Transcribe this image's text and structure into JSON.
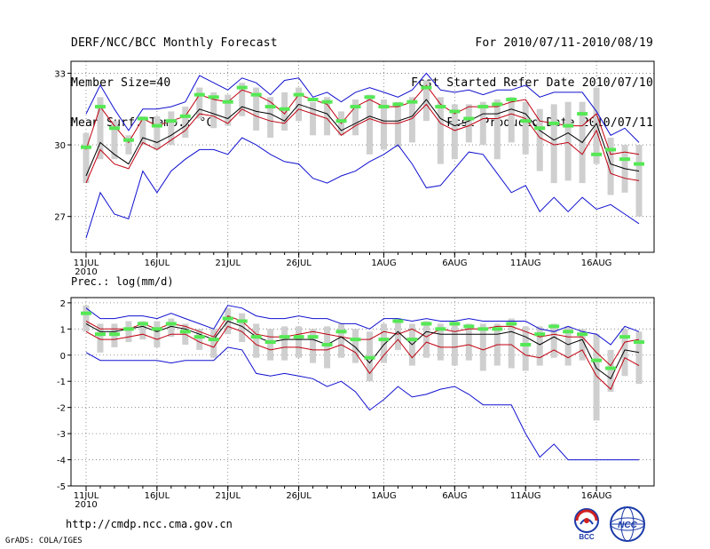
{
  "header": {
    "left": [
      "DERF/NCC/BCC Monthly Forecast",
      "Member Size=40",
      "Mean Surf. Temp.: °C"
    ],
    "right": [
      "For 2010/07/11-2010/08/19",
      "Fcst Started Refer Date 2010/07/10",
      "Fcst Produced Date 2010/07/11"
    ]
  },
  "footer": {
    "url": "http://cmdp.ncc.cma.gov.cn",
    "credit": "GrADS: COLA/IGES",
    "logo1_text": "BCC",
    "logo2_text": "NCC"
  },
  "colors": {
    "max_line": "#1010d0",
    "min_line": "#1010d0",
    "mean_line": "#000000",
    "p_line": "#c00010",
    "box": "#cfcfcf",
    "median": "#55e855",
    "grid": "#777777"
  },
  "chart_data": [
    {
      "type": "line",
      "title": "Mean Surf. Temp.: °C",
      "ylabel": "°C",
      "ylim": [
        25.5,
        33.5
      ],
      "yticks": [
        27,
        30,
        33
      ],
      "x_days": [
        1,
        2,
        3,
        4,
        5,
        6,
        7,
        8,
        9,
        10,
        11,
        12,
        13,
        14,
        15,
        16,
        17,
        18,
        19,
        20,
        21,
        22,
        23,
        24,
        25,
        26,
        27,
        28,
        29,
        30,
        31,
        32,
        33,
        34,
        35,
        36,
        37,
        38,
        39,
        40
      ],
      "xticks": [
        {
          "day": 1,
          "label": "11JUL",
          "sublabel": "2010"
        },
        {
          "day": 6,
          "label": "16JUL"
        },
        {
          "day": 11,
          "label": "21JUL"
        },
        {
          "day": 16,
          "label": "26JUL"
        },
        {
          "day": 22,
          "label": "1AUG"
        },
        {
          "day": 27,
          "label": "6AUG"
        },
        {
          "day": 32,
          "label": "11AUG"
        },
        {
          "day": 37,
          "label": "16AUG"
        }
      ],
      "series": [
        {
          "name": "max",
          "values": [
            31.3,
            32.5,
            31.5,
            30.6,
            31.5,
            31.5,
            31.6,
            31.8,
            32.9,
            32.6,
            32.3,
            32.8,
            32.6,
            32.1,
            32.7,
            32.8,
            32.0,
            32.2,
            31.8,
            32.2,
            32.4,
            32.2,
            32.0,
            32.3,
            33.0,
            32.3,
            32.2,
            32.3,
            32.1,
            32.3,
            32.3,
            32.5,
            32.0,
            32.2,
            32.2,
            32.2,
            31.4,
            30.4,
            30.7,
            30.1
          ]
        },
        {
          "name": "upper",
          "values": [
            29.8,
            31.6,
            30.8,
            30.1,
            31.1,
            30.8,
            31.0,
            31.2,
            32.1,
            31.9,
            31.8,
            32.3,
            32.1,
            31.8,
            31.3,
            32.1,
            31.9,
            31.7,
            30.9,
            31.6,
            31.9,
            31.6,
            31.6,
            31.8,
            32.5,
            31.7,
            31.3,
            31.6,
            31.6,
            31.6,
            31.8,
            31.9,
            31.0,
            30.9,
            30.8,
            30.8,
            31.3,
            29.6,
            29.7,
            29.6
          ]
        },
        {
          "name": "mean",
          "values": [
            28.7,
            30.1,
            29.6,
            29.2,
            30.3,
            30.1,
            30.4,
            30.8,
            31.5,
            31.3,
            31.1,
            31.6,
            31.4,
            31.3,
            31.0,
            31.7,
            31.5,
            31.3,
            30.6,
            30.9,
            31.2,
            31.0,
            31.0,
            31.2,
            31.9,
            31.1,
            30.8,
            31.0,
            31.3,
            31.3,
            31.5,
            31.3,
            30.6,
            30.2,
            30.5,
            30.1,
            30.9,
            29.2,
            29.0,
            28.9
          ]
        },
        {
          "name": "lower",
          "values": [
            28.4,
            29.8,
            29.2,
            29.0,
            30.1,
            29.8,
            30.2,
            30.6,
            31.3,
            31.2,
            30.9,
            31.5,
            31.2,
            31.0,
            30.9,
            31.5,
            31.3,
            31.1,
            30.4,
            30.8,
            31.1,
            30.9,
            30.9,
            31.1,
            31.7,
            30.9,
            30.6,
            30.8,
            31.1,
            31.1,
            31.3,
            31.1,
            30.3,
            30.0,
            30.1,
            29.6,
            30.6,
            28.8,
            28.6,
            28.5
          ]
        },
        {
          "name": "min",
          "values": [
            26.1,
            28.0,
            27.1,
            26.9,
            28.9,
            28.0,
            28.9,
            29.4,
            29.8,
            29.8,
            29.6,
            30.3,
            30.0,
            29.6,
            29.3,
            29.2,
            28.6,
            28.4,
            28.7,
            28.9,
            29.3,
            29.6,
            30.0,
            29.2,
            28.2,
            28.3,
            29.0,
            29.7,
            29.6,
            28.8,
            28.0,
            28.3,
            27.2,
            27.8,
            27.2,
            27.8,
            27.3,
            27.5,
            27.1,
            26.7
          ]
        },
        {
          "name": "median",
          "values": [
            29.9,
            31.6,
            30.7,
            30.2,
            31.1,
            30.8,
            31.0,
            31.2,
            32.1,
            32.0,
            31.8,
            32.4,
            32.1,
            31.6,
            31.5,
            32.1,
            31.9,
            31.8,
            31.0,
            31.6,
            32.0,
            31.6,
            31.7,
            31.8,
            32.4,
            31.6,
            31.4,
            31.1,
            31.6,
            31.7,
            31.9,
            31.0,
            30.7,
            30.9,
            30.8,
            31.3,
            29.6,
            29.8,
            29.4,
            29.2
          ]
        },
        {
          "name": "box_high",
          "values": [
            30.5,
            32.0,
            31.0,
            30.4,
            31.2,
            31.2,
            31.4,
            31.6,
            32.4,
            32.2,
            32.1,
            32.6,
            32.4,
            32.0,
            32.2,
            32.4,
            31.8,
            32.0,
            31.4,
            31.9,
            32.1,
            31.9,
            31.8,
            32.0,
            32.7,
            32.0,
            31.7,
            31.7,
            31.8,
            31.9,
            32.0,
            31.8,
            31.5,
            31.7,
            31.8,
            31.8,
            32.4,
            30.3,
            30.0,
            30.0
          ]
        },
        {
          "name": "box_low",
          "values": [
            28.4,
            29.4,
            29.4,
            29.6,
            30.0,
            29.8,
            30.0,
            30.3,
            31.1,
            30.7,
            30.8,
            31.2,
            30.6,
            30.3,
            30.6,
            31.0,
            30.4,
            30.4,
            30.4,
            30.4,
            29.6,
            29.8,
            29.9,
            30.1,
            31.0,
            29.2,
            29.4,
            30.1,
            30.0,
            29.4,
            30.1,
            29.6,
            28.9,
            28.4,
            28.5,
            28.4,
            29.2,
            27.9,
            28.0,
            27.0
          ]
        }
      ]
    },
    {
      "type": "line",
      "title": "Prec.: log(mm/d)",
      "ylabel": "log(mm/d)",
      "ylim": [
        -5,
        2.2
      ],
      "yticks": [
        -5,
        -4,
        -3,
        -2,
        -1,
        0,
        1,
        2
      ],
      "x_days": [
        1,
        2,
        3,
        4,
        5,
        6,
        7,
        8,
        9,
        10,
        11,
        12,
        13,
        14,
        15,
        16,
        17,
        18,
        19,
        20,
        21,
        22,
        23,
        24,
        25,
        26,
        27,
        28,
        29,
        30,
        31,
        32,
        33,
        34,
        35,
        36,
        37,
        38,
        39,
        40
      ],
      "xticks": [
        {
          "day": 1,
          "label": "11JUL",
          "sublabel": "2010"
        },
        {
          "day": 6,
          "label": "16JUL"
        },
        {
          "day": 11,
          "label": "21JUL"
        },
        {
          "day": 16,
          "label": "26JUL"
        },
        {
          "day": 22,
          "label": "1AUG"
        },
        {
          "day": 27,
          "label": "6AUG"
        },
        {
          "day": 32,
          "label": "11AUG"
        },
        {
          "day": 37,
          "label": "16AUG"
        }
      ],
      "series": [
        {
          "name": "max",
          "values": [
            1.8,
            1.4,
            1.4,
            1.5,
            1.5,
            1.4,
            1.6,
            1.4,
            1.2,
            1.0,
            1.9,
            1.8,
            1.5,
            1.4,
            1.4,
            1.5,
            1.4,
            1.4,
            1.2,
            1.2,
            1.0,
            1.4,
            1.4,
            1.3,
            1.4,
            1.3,
            1.3,
            1.4,
            1.3,
            1.3,
            1.3,
            1.3,
            1.0,
            0.9,
            1.1,
            0.9,
            0.8,
            0.4,
            1.1,
            0.9
          ]
        },
        {
          "name": "upper",
          "values": [
            1.3,
            1.0,
            1.0,
            1.0,
            1.2,
            1.0,
            1.2,
            1.1,
            0.9,
            0.7,
            1.5,
            1.3,
            0.8,
            0.7,
            0.7,
            0.8,
            0.9,
            0.8,
            0.7,
            0.6,
            0.6,
            0.9,
            0.8,
            1.0,
            0.7,
            1.0,
            0.9,
            1.0,
            1.0,
            1.1,
            1.1,
            0.9,
            0.7,
            0.8,
            0.7,
            0.7,
            0.1,
            -0.4,
            0.5,
            0.6
          ]
        },
        {
          "name": "mean",
          "values": [
            1.2,
            0.9,
            0.9,
            1.0,
            1.1,
            0.9,
            1.1,
            1.0,
            0.8,
            0.6,
            1.3,
            1.1,
            0.7,
            0.5,
            0.6,
            0.6,
            0.6,
            0.4,
            0.7,
            0.3,
            -0.3,
            0.4,
            0.9,
            0.4,
            0.9,
            0.8,
            0.8,
            0.8,
            0.8,
            0.8,
            0.9,
            0.7,
            0.4,
            0.7,
            0.4,
            0.6,
            -0.5,
            -0.9,
            0.2,
            0.1
          ]
        },
        {
          "name": "lower",
          "values": [
            0.9,
            0.6,
            0.6,
            0.7,
            0.8,
            0.6,
            0.8,
            0.8,
            0.5,
            0.3,
            1.1,
            0.9,
            0.4,
            0.2,
            0.3,
            0.3,
            0.2,
            0.2,
            0.4,
            0.1,
            -0.7,
            0.0,
            0.6,
            -0.1,
            0.5,
            0.3,
            0.3,
            0.4,
            0.2,
            0.4,
            0.4,
            0.0,
            -0.1,
            0.2,
            -0.1,
            0.2,
            -0.8,
            -1.3,
            -0.1,
            -0.4
          ]
        },
        {
          "name": "min",
          "values": [
            0.1,
            -0.2,
            -0.2,
            -0.2,
            -0.2,
            -0.2,
            -0.3,
            -0.2,
            -0.2,
            -0.2,
            0.3,
            0.2,
            -0.7,
            -0.8,
            -0.7,
            -0.8,
            -0.9,
            -1.2,
            -1.0,
            -1.4,
            -2.1,
            -1.7,
            -1.2,
            -1.6,
            -1.5,
            -1.3,
            -1.2,
            -1.5,
            -1.9,
            -1.9,
            -1.9,
            -3.0,
            -3.9,
            -3.4,
            -4.0,
            -4.0,
            -4.0,
            -4.0,
            -4.0,
            -4.0
          ]
        },
        {
          "name": "median",
          "values": [
            1.6,
            0.8,
            0.8,
            1.0,
            1.2,
            1.0,
            1.2,
            0.9,
            0.7,
            0.6,
            1.4,
            1.3,
            0.7,
            0.5,
            0.7,
            0.7,
            0.7,
            0.4,
            0.9,
            0.6,
            -0.1,
            0.6,
            1.3,
            0.6,
            1.2,
            1.0,
            1.2,
            1.1,
            1.0,
            1.0,
            1.2,
            0.4,
            0.8,
            1.1,
            0.9,
            0.8,
            -0.2,
            -0.5,
            0.7,
            0.5
          ]
        },
        {
          "name": "box_high",
          "values": [
            1.9,
            1.2,
            1.2,
            1.3,
            1.3,
            1.3,
            1.4,
            1.2,
            1.0,
            1.0,
            1.8,
            1.6,
            1.2,
            1.0,
            1.1,
            1.1,
            1.0,
            1.1,
            1.2,
            1.0,
            0.9,
            1.2,
            1.4,
            1.2,
            1.3,
            1.2,
            1.3,
            1.2,
            1.2,
            1.2,
            1.4,
            1.1,
            1.1,
            1.2,
            1.1,
            1.0,
            0.8,
            0.2,
            1.0,
            0.9
          ]
        },
        {
          "name": "box_low",
          "values": [
            0.9,
            0.1,
            0.3,
            0.5,
            0.6,
            0.3,
            0.7,
            0.4,
            0.2,
            -0.1,
            0.8,
            0.5,
            -0.1,
            -0.2,
            -0.2,
            -0.1,
            -0.3,
            -0.5,
            -0.1,
            -0.3,
            -1.0,
            -0.3,
            0.2,
            -0.4,
            -0.1,
            -0.2,
            -0.4,
            -0.2,
            -0.6,
            -0.4,
            -0.5,
            -0.6,
            -0.4,
            -0.1,
            -0.4,
            -0.2,
            -2.5,
            -1.4,
            -0.8,
            -1.1
          ]
        }
      ]
    }
  ]
}
